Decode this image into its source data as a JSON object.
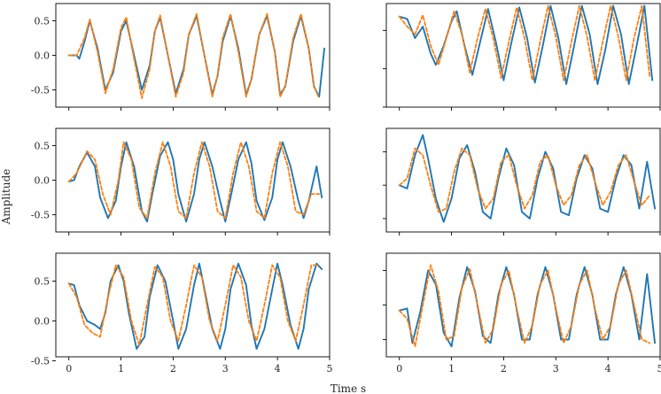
{
  "figure": {
    "xlabel": "Time s",
    "ylabel": "Amplitude"
  },
  "chart_data": [
    {
      "type": "line",
      "panel": "row1-left",
      "xlim": [
        -0.25,
        5.0
      ],
      "ylim": [
        -0.75,
        0.75
      ],
      "xticks": [
        "0",
        "1",
        "2",
        "3",
        "4",
        "5"
      ],
      "yticks": [
        "0.5",
        "0.0",
        "-0.5"
      ],
      "series": [
        {
          "color": "#1f77b4",
          "style": "solid",
          "x": [
            0,
            0.15,
            0.2,
            0.3,
            0.4,
            0.55,
            0.7,
            0.85,
            1.0,
            1.1,
            1.25,
            1.4,
            1.55,
            1.65,
            1.75,
            1.9,
            2.05,
            2.2,
            2.3,
            2.45,
            2.6,
            2.75,
            2.85,
            2.95,
            3.1,
            3.25,
            3.4,
            3.5,
            3.65,
            3.8,
            3.95,
            4.05,
            4.15,
            4.3,
            4.45,
            4.6,
            4.7,
            4.8,
            4.9
          ],
          "y": [
            0,
            0,
            -0.05,
            0.2,
            0.5,
            0.1,
            -0.5,
            -0.25,
            0.35,
            0.5,
            0.0,
            -0.5,
            -0.15,
            0.35,
            0.55,
            0.0,
            -0.55,
            -0.2,
            0.3,
            0.57,
            0.0,
            -0.57,
            -0.3,
            0.2,
            0.57,
            0.1,
            -0.57,
            -0.35,
            0.3,
            0.57,
            0.05,
            -0.57,
            -0.45,
            0.2,
            0.57,
            0.1,
            -0.45,
            -0.6,
            0.1
          ]
        },
        {
          "color": "#ff7f0e",
          "style": "dashed",
          "x": [
            0,
            0.15,
            0.3,
            0.4,
            0.55,
            0.7,
            0.85,
            1.0,
            1.1,
            1.25,
            1.4,
            1.55,
            1.65,
            1.75,
            1.9,
            2.05,
            2.2,
            2.3,
            2.45,
            2.6,
            2.75,
            2.85,
            2.95,
            3.1,
            3.25,
            3.4,
            3.5,
            3.65,
            3.8,
            3.95,
            4.05,
            4.15,
            4.3,
            4.45,
            4.6,
            4.7,
            4.8
          ],
          "y": [
            0,
            0,
            0.25,
            0.52,
            0.05,
            -0.55,
            -0.2,
            0.4,
            0.55,
            -0.05,
            -0.62,
            -0.2,
            0.35,
            0.58,
            0.0,
            -0.6,
            -0.25,
            0.3,
            0.6,
            0.0,
            -0.6,
            -0.3,
            0.25,
            0.6,
            0.05,
            -0.6,
            -0.35,
            0.3,
            0.6,
            0.05,
            -0.6,
            -0.45,
            0.25,
            0.6,
            0.1,
            -0.45,
            -0.62
          ]
        }
      ]
    },
    {
      "type": "line",
      "panel": "row1-right",
      "xlim": [
        -0.25,
        5.0
      ],
      "ylim": [
        -0.5,
        0.85
      ],
      "xticks": [
        "0",
        "1",
        "2",
        "3",
        "4",
        "5"
      ],
      "yticks": [],
      "series": [
        {
          "color": "#1f77b4",
          "style": "solid",
          "x": [
            0,
            0.15,
            0.3,
            0.45,
            0.6,
            0.7,
            0.85,
            1.0,
            1.1,
            1.25,
            1.4,
            1.55,
            1.7,
            1.85,
            2.0,
            2.15,
            2.3,
            2.45,
            2.6,
            2.75,
            2.9,
            3.05,
            3.2,
            3.35,
            3.5,
            3.65,
            3.8,
            3.95,
            4.1,
            4.25,
            4.4,
            4.55,
            4.7,
            4.85
          ],
          "y": [
            0.68,
            0.65,
            0.4,
            0.55,
            0.2,
            0.05,
            0.3,
            0.62,
            0.75,
            0.3,
            -0.08,
            0.35,
            0.78,
            0.35,
            -0.15,
            0.35,
            0.8,
            0.4,
            -0.18,
            0.3,
            0.82,
            0.4,
            -0.2,
            0.3,
            0.82,
            0.45,
            -0.2,
            0.25,
            0.82,
            0.45,
            -0.2,
            0.3,
            0.82,
            -0.15
          ]
        },
        {
          "color": "#ff7f0e",
          "style": "dashed",
          "x": [
            0,
            0.15,
            0.3,
            0.45,
            0.6,
            0.75,
            0.9,
            1.05,
            1.2,
            1.35,
            1.5,
            1.65,
            1.8,
            1.95,
            2.1,
            2.25,
            2.4,
            2.55,
            2.7,
            2.85,
            3.0,
            3.15,
            3.3,
            3.45,
            3.6,
            3.75,
            3.9,
            4.05,
            4.2,
            4.35,
            4.5,
            4.65,
            4.8
          ],
          "y": [
            0.68,
            0.55,
            0.45,
            0.7,
            0.3,
            0.05,
            0.4,
            0.75,
            0.45,
            -0.05,
            0.4,
            0.78,
            0.4,
            -0.12,
            0.35,
            0.8,
            0.4,
            -0.15,
            0.35,
            0.82,
            0.42,
            -0.15,
            0.35,
            0.82,
            0.42,
            -0.15,
            0.35,
            0.82,
            0.42,
            -0.15,
            0.4,
            0.82,
            -0.1
          ]
        }
      ]
    },
    {
      "type": "line",
      "panel": "row2-left",
      "xlim": [
        -0.25,
        5.0
      ],
      "ylim": [
        -0.75,
        0.75
      ],
      "xticks": [
        "0",
        "1",
        "2",
        "3",
        "4",
        "5"
      ],
      "yticks": [
        "0.5",
        "0.0",
        "-0.5"
      ],
      "series": [
        {
          "color": "#1f77b4",
          "style": "solid",
          "x": [
            0,
            0.1,
            0.2,
            0.35,
            0.5,
            0.6,
            0.75,
            0.9,
            1.0,
            1.1,
            1.25,
            1.4,
            1.5,
            1.6,
            1.75,
            1.9,
            2.0,
            2.1,
            2.25,
            2.4,
            2.5,
            2.6,
            2.75,
            2.9,
            3.0,
            3.1,
            3.25,
            3.4,
            3.5,
            3.6,
            3.75,
            3.9,
            4.0,
            4.1,
            4.25,
            4.4,
            4.5,
            4.6,
            4.75,
            4.85
          ],
          "y": [
            -0.02,
            0.0,
            0.2,
            0.4,
            0.2,
            -0.25,
            -0.55,
            -0.3,
            0.2,
            0.55,
            0.2,
            -0.45,
            -0.6,
            -0.2,
            0.35,
            0.55,
            0.3,
            -0.2,
            -0.6,
            -0.2,
            0.3,
            0.55,
            0.2,
            -0.3,
            -0.6,
            -0.25,
            0.3,
            0.55,
            0.25,
            -0.3,
            -0.58,
            -0.25,
            0.3,
            0.55,
            0.2,
            -0.3,
            -0.55,
            -0.3,
            0.2,
            -0.25
          ]
        },
        {
          "color": "#ff7f0e",
          "style": "dashed",
          "x": [
            0,
            0.15,
            0.35,
            0.5,
            0.65,
            0.8,
            0.95,
            1.05,
            1.2,
            1.35,
            1.5,
            1.65,
            1.8,
            1.95,
            2.1,
            2.25,
            2.4,
            2.55,
            2.7,
            2.85,
            3.0,
            3.15,
            3.3,
            3.45,
            3.6,
            3.75,
            3.9,
            4.05,
            4.2,
            4.35,
            4.5,
            4.65,
            4.8
          ],
          "y": [
            -0.02,
            0.1,
            0.42,
            0.3,
            -0.2,
            -0.5,
            0.0,
            0.55,
            0.3,
            -0.4,
            -0.55,
            0.1,
            0.55,
            0.2,
            -0.45,
            -0.55,
            0.1,
            0.55,
            0.2,
            -0.45,
            -0.55,
            0.1,
            0.55,
            0.2,
            -0.45,
            -0.55,
            0.1,
            0.55,
            0.2,
            -0.45,
            -0.5,
            -0.2,
            -0.2
          ]
        }
      ]
    },
    {
      "type": "line",
      "panel": "row2-right",
      "xlim": [
        -0.25,
        5.0
      ],
      "ylim": [
        -0.7,
        0.85
      ],
      "xticks": [
        "0",
        "1",
        "2",
        "3",
        "4",
        "5"
      ],
      "yticks": [],
      "series": [
        {
          "color": "#1f77b4",
          "style": "solid",
          "x": [
            0,
            0.15,
            0.3,
            0.45,
            0.55,
            0.7,
            0.85,
            1.0,
            1.15,
            1.3,
            1.45,
            1.6,
            1.75,
            1.9,
            2.05,
            2.2,
            2.35,
            2.5,
            2.65,
            2.8,
            2.95,
            3.1,
            3.25,
            3.4,
            3.55,
            3.7,
            3.85,
            4.0,
            4.15,
            4.3,
            4.45,
            4.6,
            4.75,
            4.9
          ],
          "y": [
            0.0,
            -0.05,
            0.45,
            0.75,
            0.4,
            -0.2,
            -0.55,
            -0.2,
            0.4,
            0.6,
            0.2,
            -0.4,
            -0.5,
            0.1,
            0.55,
            0.3,
            -0.4,
            -0.5,
            0.1,
            0.5,
            0.25,
            -0.4,
            -0.45,
            0.1,
            0.45,
            0.25,
            -0.35,
            -0.4,
            0.1,
            0.45,
            0.3,
            -0.35,
            0.35,
            -0.35
          ]
        },
        {
          "color": "#ff7f0e",
          "style": "dashed",
          "x": [
            0,
            0.15,
            0.3,
            0.45,
            0.6,
            0.75,
            0.9,
            1.05,
            1.2,
            1.35,
            1.5,
            1.65,
            1.8,
            1.95,
            2.1,
            2.25,
            2.4,
            2.55,
            2.7,
            2.85,
            3.0,
            3.15,
            3.3,
            3.45,
            3.6,
            3.75,
            3.9,
            4.05,
            4.2,
            4.35,
            4.5,
            4.65,
            4.8
          ],
          "y": [
            0.0,
            0.1,
            0.55,
            0.45,
            0.0,
            -0.4,
            -0.35,
            0.2,
            0.55,
            0.45,
            -0.05,
            -0.35,
            -0.2,
            0.35,
            0.45,
            0.0,
            -0.35,
            -0.15,
            0.35,
            0.45,
            0.0,
            -0.3,
            -0.15,
            0.3,
            0.45,
            0.05,
            -0.3,
            -0.1,
            0.3,
            0.45,
            0.05,
            -0.3,
            -0.15
          ]
        }
      ]
    },
    {
      "type": "line",
      "panel": "row3-left",
      "xlim": [
        -0.25,
        5.0
      ],
      "ylim": [
        -0.45,
        0.85
      ],
      "xticks": [
        "0",
        "1",
        "2",
        "3",
        "4",
        "5"
      ],
      "yticks": [
        "0.5",
        "0.0",
        "-0.5"
      ],
      "series": [
        {
          "color": "#1f77b4",
          "style": "solid",
          "x": [
            0,
            0.1,
            0.2,
            0.35,
            0.5,
            0.6,
            0.7,
            0.8,
            0.95,
            1.05,
            1.15,
            1.3,
            1.45,
            1.55,
            1.7,
            1.85,
            2.0,
            2.1,
            2.25,
            2.4,
            2.5,
            2.6,
            2.75,
            2.9,
            3.0,
            3.1,
            3.25,
            3.4,
            3.5,
            3.6,
            3.75,
            3.9,
            4.0,
            4.1,
            4.25,
            4.4,
            4.5,
            4.6,
            4.75,
            4.85
          ],
          "y": [
            0.47,
            0.45,
            0.2,
            0.0,
            -0.05,
            -0.1,
            0.1,
            0.5,
            0.7,
            0.5,
            0.1,
            -0.35,
            -0.2,
            0.3,
            0.7,
            0.5,
            0.0,
            -0.35,
            -0.1,
            0.45,
            0.72,
            0.4,
            -0.1,
            -0.35,
            -0.1,
            0.4,
            0.72,
            0.45,
            -0.05,
            -0.35,
            -0.1,
            0.4,
            0.72,
            0.45,
            -0.05,
            -0.35,
            -0.1,
            0.4,
            0.72,
            0.65
          ]
        },
        {
          "color": "#ff7f0e",
          "style": "dashed",
          "x": [
            0,
            0.15,
            0.3,
            0.45,
            0.6,
            0.75,
            0.9,
            1.05,
            1.2,
            1.35,
            1.5,
            1.65,
            1.8,
            1.95,
            2.1,
            2.25,
            2.4,
            2.55,
            2.7,
            2.85,
            3.0,
            3.15,
            3.3,
            3.45,
            3.6,
            3.75,
            3.9,
            4.05,
            4.2,
            4.35,
            4.5,
            4.65,
            4.8
          ],
          "y": [
            0.47,
            0.3,
            -0.05,
            -0.15,
            -0.2,
            0.3,
            0.7,
            0.55,
            0.0,
            -0.3,
            0.2,
            0.68,
            0.55,
            0.0,
            -0.25,
            0.2,
            0.7,
            0.55,
            0.0,
            -0.25,
            0.2,
            0.7,
            0.55,
            0.0,
            -0.25,
            0.2,
            0.7,
            0.55,
            0.0,
            -0.25,
            0.2,
            0.7,
            0.7
          ]
        }
      ]
    },
    {
      "type": "line",
      "panel": "row3-right",
      "xlim": [
        -0.25,
        5.0
      ],
      "ylim": [
        -0.75,
        0.75
      ],
      "xticks": [
        "0",
        "1",
        "2",
        "3",
        "4",
        "5"
      ],
      "yticks": [],
      "series": [
        {
          "color": "#1f77b4",
          "style": "solid",
          "x": [
            0,
            0.15,
            0.25,
            0.4,
            0.55,
            0.7,
            0.85,
            1.0,
            1.15,
            1.3,
            1.45,
            1.6,
            1.75,
            1.9,
            2.05,
            2.2,
            2.35,
            2.5,
            2.65,
            2.8,
            2.95,
            3.1,
            3.25,
            3.4,
            3.55,
            3.7,
            3.85,
            4.0,
            4.15,
            4.3,
            4.45,
            4.6,
            4.75,
            4.9
          ],
          "y": [
            -0.08,
            -0.05,
            -0.55,
            -0.1,
            0.5,
            0.3,
            -0.4,
            -0.6,
            0.1,
            0.55,
            0.2,
            -0.45,
            -0.55,
            0.15,
            0.55,
            0.15,
            -0.5,
            -0.5,
            0.15,
            0.55,
            0.15,
            -0.5,
            -0.5,
            0.15,
            0.55,
            0.15,
            -0.5,
            -0.5,
            0.15,
            0.55,
            0.15,
            -0.5,
            0.45,
            -0.55
          ]
        },
        {
          "color": "#ff7f0e",
          "style": "dashed",
          "x": [
            0,
            0.15,
            0.3,
            0.45,
            0.6,
            0.75,
            0.9,
            1.05,
            1.2,
            1.35,
            1.5,
            1.65,
            1.8,
            1.95,
            2.1,
            2.25,
            2.4,
            2.55,
            2.7,
            2.85,
            3.0,
            3.15,
            3.3,
            3.45,
            3.6,
            3.75,
            3.9,
            4.05,
            4.2,
            4.35,
            4.5,
            4.65,
            4.8
          ],
          "y": [
            -0.08,
            -0.2,
            -0.6,
            0.0,
            0.58,
            0.2,
            -0.5,
            -0.45,
            0.25,
            0.52,
            0.0,
            -0.55,
            -0.35,
            0.3,
            0.5,
            -0.05,
            -0.55,
            -0.3,
            0.3,
            0.5,
            -0.05,
            -0.55,
            -0.3,
            0.3,
            0.5,
            -0.05,
            -0.5,
            -0.3,
            0.3,
            0.5,
            0.0,
            -0.5,
            -0.55
          ]
        }
      ]
    }
  ]
}
